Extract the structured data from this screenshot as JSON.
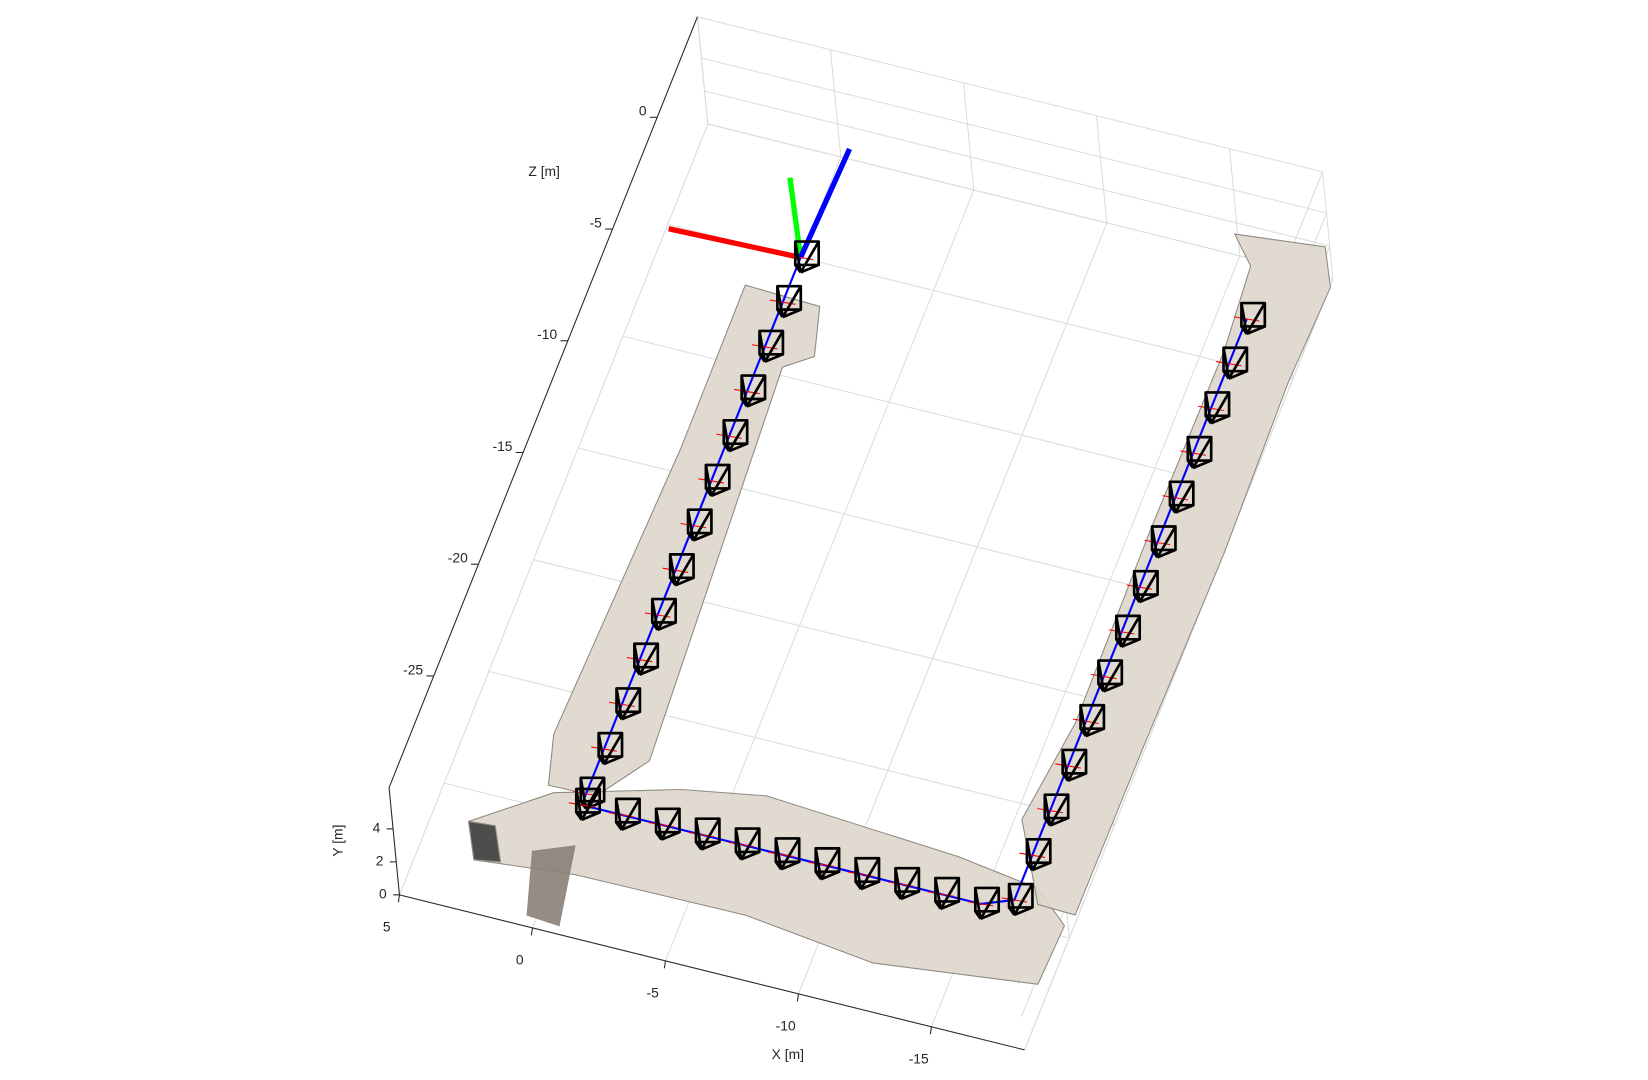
{
  "chart_data": {
    "type": "trajectory3d",
    "xlabel": "X [m]",
    "ylabel": "Y [m]",
    "zlabel": "Z [m]",
    "xlim": [
      5,
      -18.5
    ],
    "ylim": [
      0,
      6.5
    ],
    "zlim": [
      -30,
      4.5
    ],
    "xticks": [
      5,
      0,
      -5,
      -10,
      -15
    ],
    "yticks": [
      4,
      2,
      0
    ],
    "zticks": [
      0,
      -5,
      -10,
      -15,
      -20,
      -25
    ],
    "grid": true,
    "trajectory": {
      "color": "#0000ff",
      "x": [
        0,
        0,
        0,
        0,
        0,
        0,
        0,
        0,
        0,
        0,
        0,
        0,
        0,
        0,
        -1.5,
        -3,
        -4.5,
        -6,
        -7.5,
        -9,
        -10.5,
        -12,
        -13.5,
        -15,
        -16.1,
        -16.1,
        -16.1,
        -16.1,
        -16.1,
        -16.1,
        -16.1,
        -16.1,
        -16.1,
        -16.1,
        -16.1,
        -16.1,
        -16.1,
        -16.1
      ],
      "y": [
        0,
        0,
        0,
        0,
        0,
        0,
        0,
        0,
        0,
        0,
        0,
        0,
        0,
        0,
        0,
        0,
        0,
        0,
        0,
        0,
        0,
        0,
        0,
        0,
        0,
        0,
        0,
        0,
        0,
        0,
        0,
        0,
        0,
        0,
        0,
        0,
        0,
        0
      ],
      "z": [
        0,
        -2,
        -4,
        -6,
        -8,
        -10,
        -12,
        -14,
        -16,
        -18,
        -20,
        -22,
        -24,
        -24.5,
        -24.5,
        -24.5,
        -24.5,
        -24.5,
        -24.5,
        -24.5,
        -24.5,
        -24.5,
        -24.5,
        -24.5,
        -24,
        -22,
        -20,
        -18,
        -16,
        -14,
        -12,
        -10,
        -8,
        -6,
        -4,
        -2,
        0,
        2
      ]
    }
  }
}
